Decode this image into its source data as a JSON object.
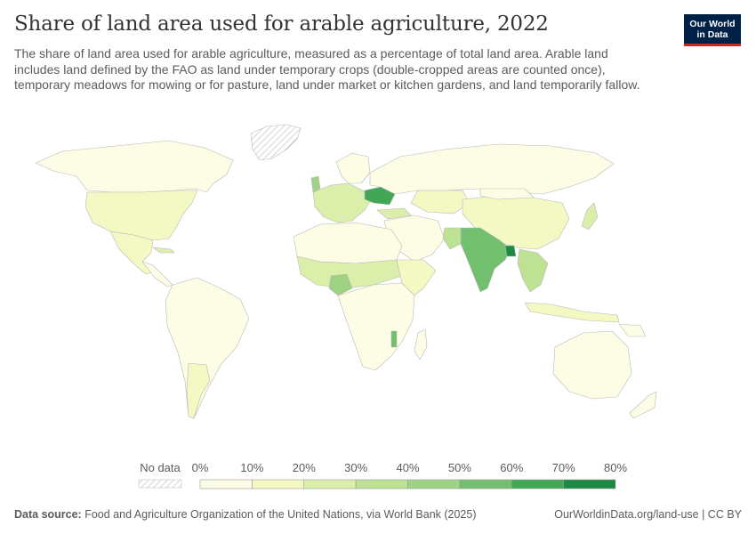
{
  "title": "Share of land area used for arable agriculture, 2022",
  "subtitle": "The share of land area used for arable agriculture, measured as a percentage of total land area. Arable land includes land defined by the FAO as land under temporary crops (double-cropped areas are counted once), temporary meadows for mowing or for pasture, land under market or kitchen gardens, and land temporarily fallow.",
  "logo": {
    "line1": "Our World",
    "line2": "in Data"
  },
  "legend": {
    "no_data_label": "No data",
    "ticks": [
      "0%",
      "10%",
      "20%",
      "30%",
      "40%",
      "50%",
      "60%",
      "70%",
      "80%"
    ],
    "colors": [
      "#fdfde6",
      "#f4f9c4",
      "#dcefaa",
      "#bde294",
      "#9dd383",
      "#72bf6f",
      "#43a657",
      "#1c8a44",
      "#006837"
    ]
  },
  "footer": {
    "source_label": "Data source:",
    "source_text": " Food and Agriculture Organization of the United Nations, via World Bank (2025)",
    "right_text": "OurWorldinData.org/land-use | CC BY"
  }
}
